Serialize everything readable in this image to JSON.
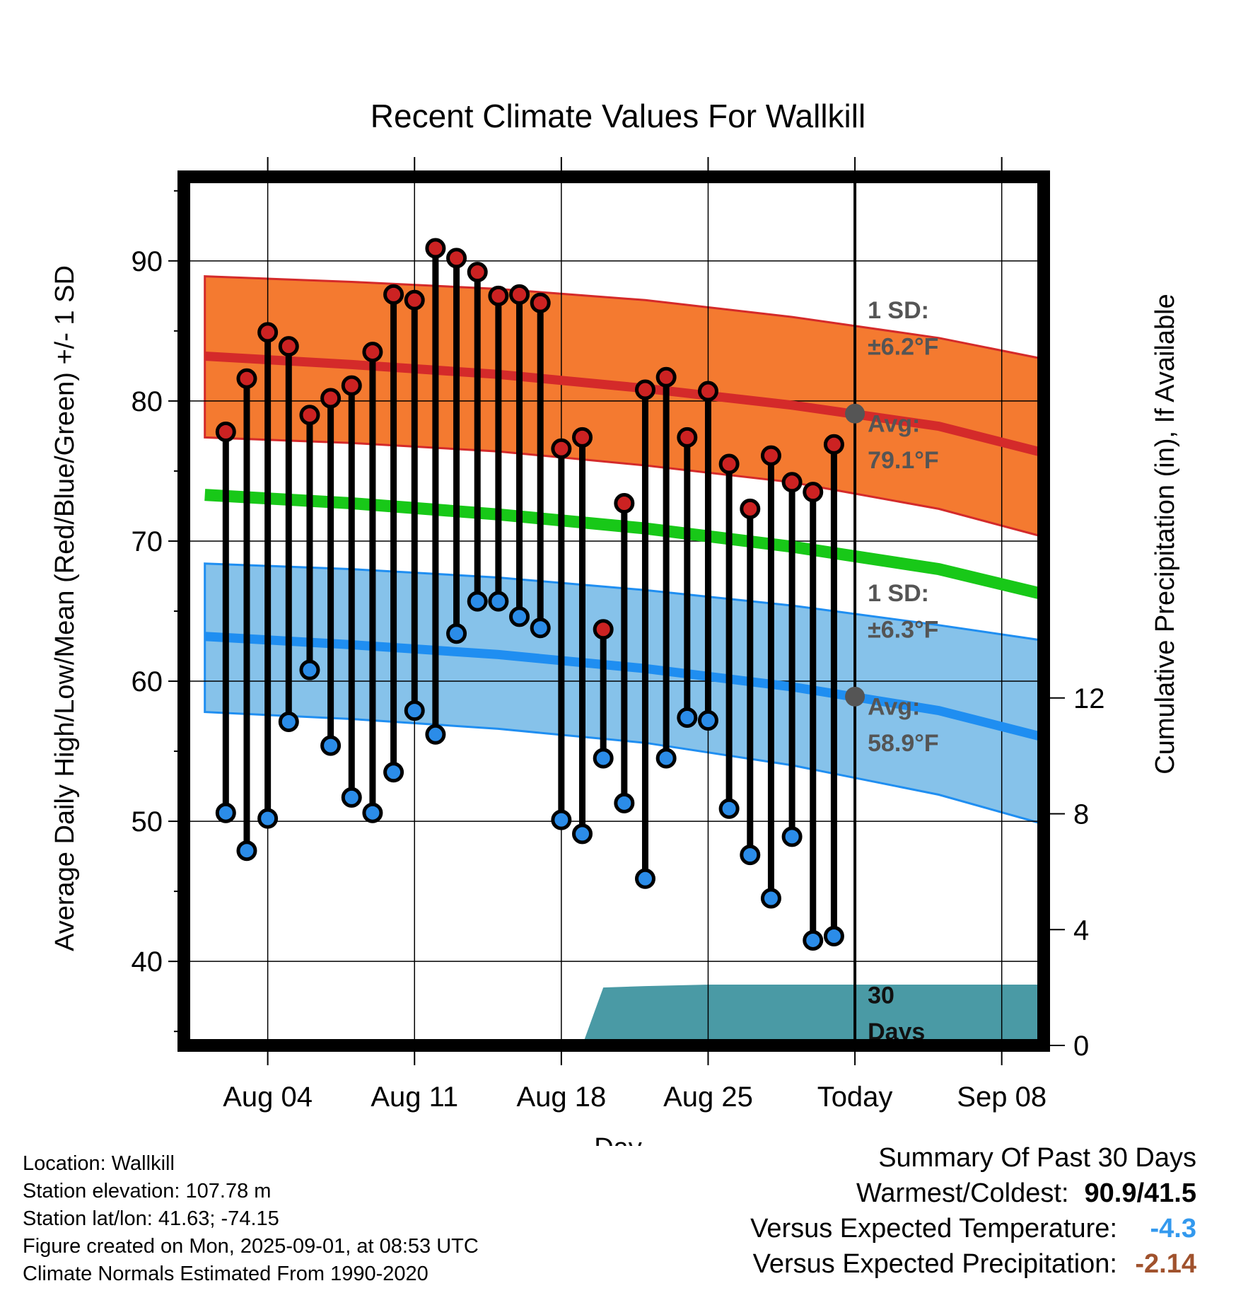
{
  "chart_data": {
    "type": "line",
    "title": "Recent Climate Values For Wallkill",
    "xlabel": "Day",
    "ylabel": "Average Daily High/Low/Mean (Red/Blue/Green) +/- 1 SD",
    "y2label": "Cumulative Precipitation (in), If Available",
    "ylim": [
      34,
      96
    ],
    "y2lim": [
      0,
      30
    ],
    "x_ticks": [
      "Aug 04",
      "Aug 11",
      "Aug 18",
      "Aug 25",
      "Today",
      "Sep 08"
    ],
    "x_tick_dates": [
      "2025-08-04",
      "2025-08-11",
      "2025-08-18",
      "2025-08-25",
      "2025-09-01",
      "2025-09-08"
    ],
    "xlim": [
      "2025-07-31",
      "2025-09-10"
    ],
    "y_ticks": [
      40,
      50,
      60,
      70,
      80,
      90
    ],
    "y2_ticks": [
      0,
      4,
      8,
      12
    ],
    "today": "2025-09-01",
    "grid": true,
    "observed": {
      "dates": [
        "2025-08-02",
        "2025-08-03",
        "2025-08-04",
        "2025-08-05",
        "2025-08-06",
        "2025-08-07",
        "2025-08-08",
        "2025-08-09",
        "2025-08-10",
        "2025-08-11",
        "2025-08-12",
        "2025-08-13",
        "2025-08-14",
        "2025-08-15",
        "2025-08-16",
        "2025-08-17",
        "2025-08-18",
        "2025-08-19",
        "2025-08-20",
        "2025-08-21",
        "2025-08-22",
        "2025-08-23",
        "2025-08-24",
        "2025-08-25",
        "2025-08-26",
        "2025-08-27",
        "2025-08-28",
        "2025-08-29",
        "2025-08-30",
        "2025-08-31"
      ],
      "highs": [
        77.8,
        81.6,
        84.9,
        83.9,
        79.0,
        80.2,
        81.1,
        83.5,
        87.6,
        87.2,
        90.9,
        90.2,
        89.2,
        87.5,
        87.6,
        87.0,
        76.6,
        77.4,
        63.7,
        72.7,
        80.8,
        81.7,
        77.4,
        80.7,
        75.5,
        72.3,
        76.1,
        74.2,
        73.5,
        76.9
      ],
      "lows": [
        50.6,
        47.9,
        50.2,
        57.1,
        60.8,
        55.4,
        51.7,
        50.6,
        53.5,
        57.9,
        56.2,
        63.4,
        65.7,
        65.7,
        64.6,
        63.8,
        50.1,
        49.1,
        54.5,
        51.3,
        45.9,
        54.5,
        57.4,
        57.2,
        50.9,
        47.6,
        44.5,
        48.9,
        41.5,
        41.8
      ]
    },
    "normals": {
      "dates": [
        "2025-08-01",
        "2025-08-08",
        "2025-08-15",
        "2025-08-22",
        "2025-08-29",
        "2025-09-05",
        "2025-09-10"
      ],
      "high_avg": [
        83.2,
        82.6,
        81.9,
        80.9,
        79.7,
        78.2,
        76.3
      ],
      "high_upper": [
        88.9,
        88.5,
        88.0,
        87.2,
        86.0,
        84.5,
        83.0
      ],
      "high_lower": [
        77.4,
        77.0,
        76.4,
        75.4,
        74.2,
        72.3,
        70.3
      ],
      "mean_avg": [
        73.3,
        72.7,
        71.9,
        70.9,
        69.6,
        68.0,
        66.2
      ],
      "low_avg": [
        63.2,
        62.6,
        61.9,
        60.9,
        59.6,
        57.9,
        56.0
      ],
      "low_upper": [
        68.4,
        68.0,
        67.4,
        66.5,
        65.4,
        64.0,
        62.9
      ],
      "low_lower": [
        57.8,
        57.3,
        56.6,
        55.6,
        54.0,
        51.9,
        49.8
      ]
    },
    "precipitation": {
      "dates": [
        "2025-07-31",
        "2025-08-19",
        "2025-08-20",
        "2025-08-22",
        "2025-08-25",
        "2025-09-10"
      ],
      "cumulative_in": [
        0,
        0,
        2.0,
        2.05,
        2.1,
        2.1
      ]
    },
    "annotations": {
      "high_sd_line1": "1 SD:",
      "high_sd_line2": "±6.2°F",
      "high_avg_line1": "Avg:",
      "high_avg_line2": "79.1°F",
      "low_sd_line1": "1 SD:",
      "low_sd_line2": "±6.3°F",
      "low_avg_line1": "Avg:",
      "low_avg_line2": "58.9°F",
      "days_line1": "30",
      "days_line2": "Days"
    },
    "today_values": {
      "high_avg": 79.1,
      "low_avg": 58.9
    },
    "colors": {
      "high_band": "#f47a30",
      "high_line": "#d42a2a",
      "low_band": "#86c2ea",
      "low_line": "#1f8ef1",
      "mean_line": "#18c818",
      "precip": "#4a9aa5",
      "high_marker": "#cc2222",
      "low_marker": "#2b8ce8"
    }
  },
  "footer": {
    "location": "Location: Wallkill",
    "elevation": "Station elevation: 107.78 m",
    "latlon": "Station lat/lon: 41.63; -74.15",
    "created": "Figure created on Mon, 2025-09-01, at 08:53 UTC",
    "normals": "Climate Normals Estimated From 1990-2020"
  },
  "summary": {
    "heading": "Summary Of Past 30 Days",
    "warm_cold_label": "Warmest/Coldest:",
    "warm_cold_value": "90.9/41.5",
    "temp_label": "Versus Expected Temperature:",
    "temp_value": "-4.3",
    "precip_label": "Versus Expected Precipitation:",
    "precip_value": "-2.14"
  }
}
